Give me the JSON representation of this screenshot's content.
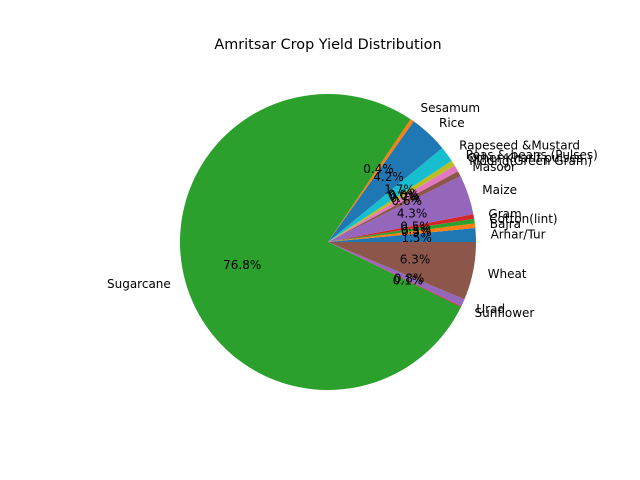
{
  "chart_data": {
    "type": "pie",
    "title": "Amritsar Crop Yield Distribution",
    "start_angle_deg": 0,
    "direction": "counterclockwise",
    "autopct_format": "%1.1f%%",
    "slices": [
      {
        "label": "Arhar/Tur",
        "value": 1.5,
        "color": "#1f77b4"
      },
      {
        "label": "Bajra",
        "value": 0.5,
        "color": "#ff7f0e"
      },
      {
        "label": "Cotton(lint)",
        "value": 0.5,
        "color": "#2ca02c"
      },
      {
        "label": "Gram",
        "value": 0.5,
        "color": "#d62728"
      },
      {
        "label": "Maize",
        "value": 4.3,
        "color": "#9467bd"
      },
      {
        "label": "Masoor",
        "value": 0.6,
        "color": "#8c564b"
      },
      {
        "label": "Moong(Green Gram)",
        "value": 0.7,
        "color": "#e377c2"
      },
      {
        "label": "Other Kharif pulses",
        "value": 0.0,
        "color": "#7f7f7f"
      },
      {
        "label": "Peas & beans (Pulses)",
        "value": 0.6,
        "color": "#bcbd22"
      },
      {
        "label": "Rapeseed &Mustard",
        "value": 1.7,
        "color": "#17becf"
      },
      {
        "label": "Rice",
        "value": 4.2,
        "color": "#1f77b4"
      },
      {
        "label": "Sesamum",
        "value": 0.4,
        "color": "#ff7f0e"
      },
      {
        "label": "Sugarcane",
        "value": 76.8,
        "color": "#2ca02c"
      },
      {
        "label": "Sunflower",
        "value": 0.1,
        "color": "#d62728"
      },
      {
        "label": "Urad",
        "value": 0.8,
        "color": "#9467bd"
      },
      {
        "label": "Wheat",
        "value": 6.3,
        "color": "#8c564b"
      }
    ]
  }
}
